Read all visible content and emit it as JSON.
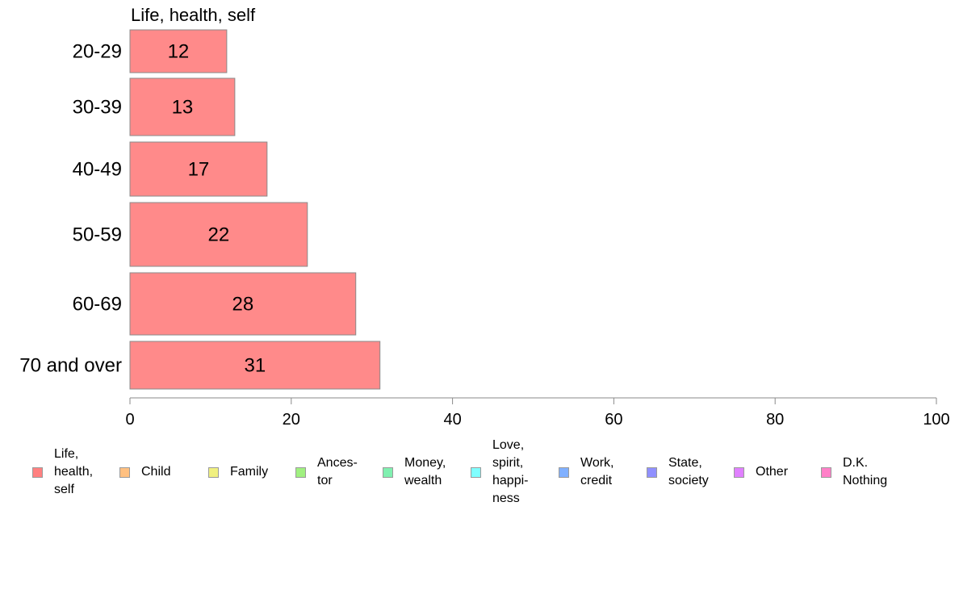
{
  "chart_data": {
    "type": "bar",
    "orientation": "horizontal",
    "title": "Life, health, self",
    "categories": [
      "20-29",
      "30-39",
      "40-49",
      "50-59",
      "60-69",
      "70 and over"
    ],
    "series": [
      {
        "name": "Life, health, self",
        "values": [
          12,
          13,
          17,
          22,
          28,
          31
        ]
      }
    ],
    "data_labels": [
      "12",
      "13",
      "17",
      "22",
      "28",
      "31"
    ],
    "xlim": [
      0,
      100
    ],
    "xticks": [
      0,
      20,
      40,
      60,
      80,
      100
    ],
    "grid": false,
    "bar_color": "#ff8a8a",
    "legend_position": "bottom",
    "legend": [
      {
        "label": "Life,\nhealth,\nself",
        "color": "#ff8080"
      },
      {
        "label": "Child",
        "color": "#ffc080"
      },
      {
        "label": "Family",
        "color": "#f0f080"
      },
      {
        "label": "Ances-\ntor",
        "color": "#a0f080"
      },
      {
        "label": "Money,\nwealth",
        "color": "#80f0b0"
      },
      {
        "label": "Love,\nspirit,\nhappi-\nness",
        "color": "#80ffff"
      },
      {
        "label": "Work,\ncredit",
        "color": "#80b0ff"
      },
      {
        "label": "State,\nsociety",
        "color": "#9090ff"
      },
      {
        "label": "Other",
        "color": "#e080ff"
      },
      {
        "label": "D.K.\nNothing",
        "color": "#ff80c8"
      }
    ]
  }
}
